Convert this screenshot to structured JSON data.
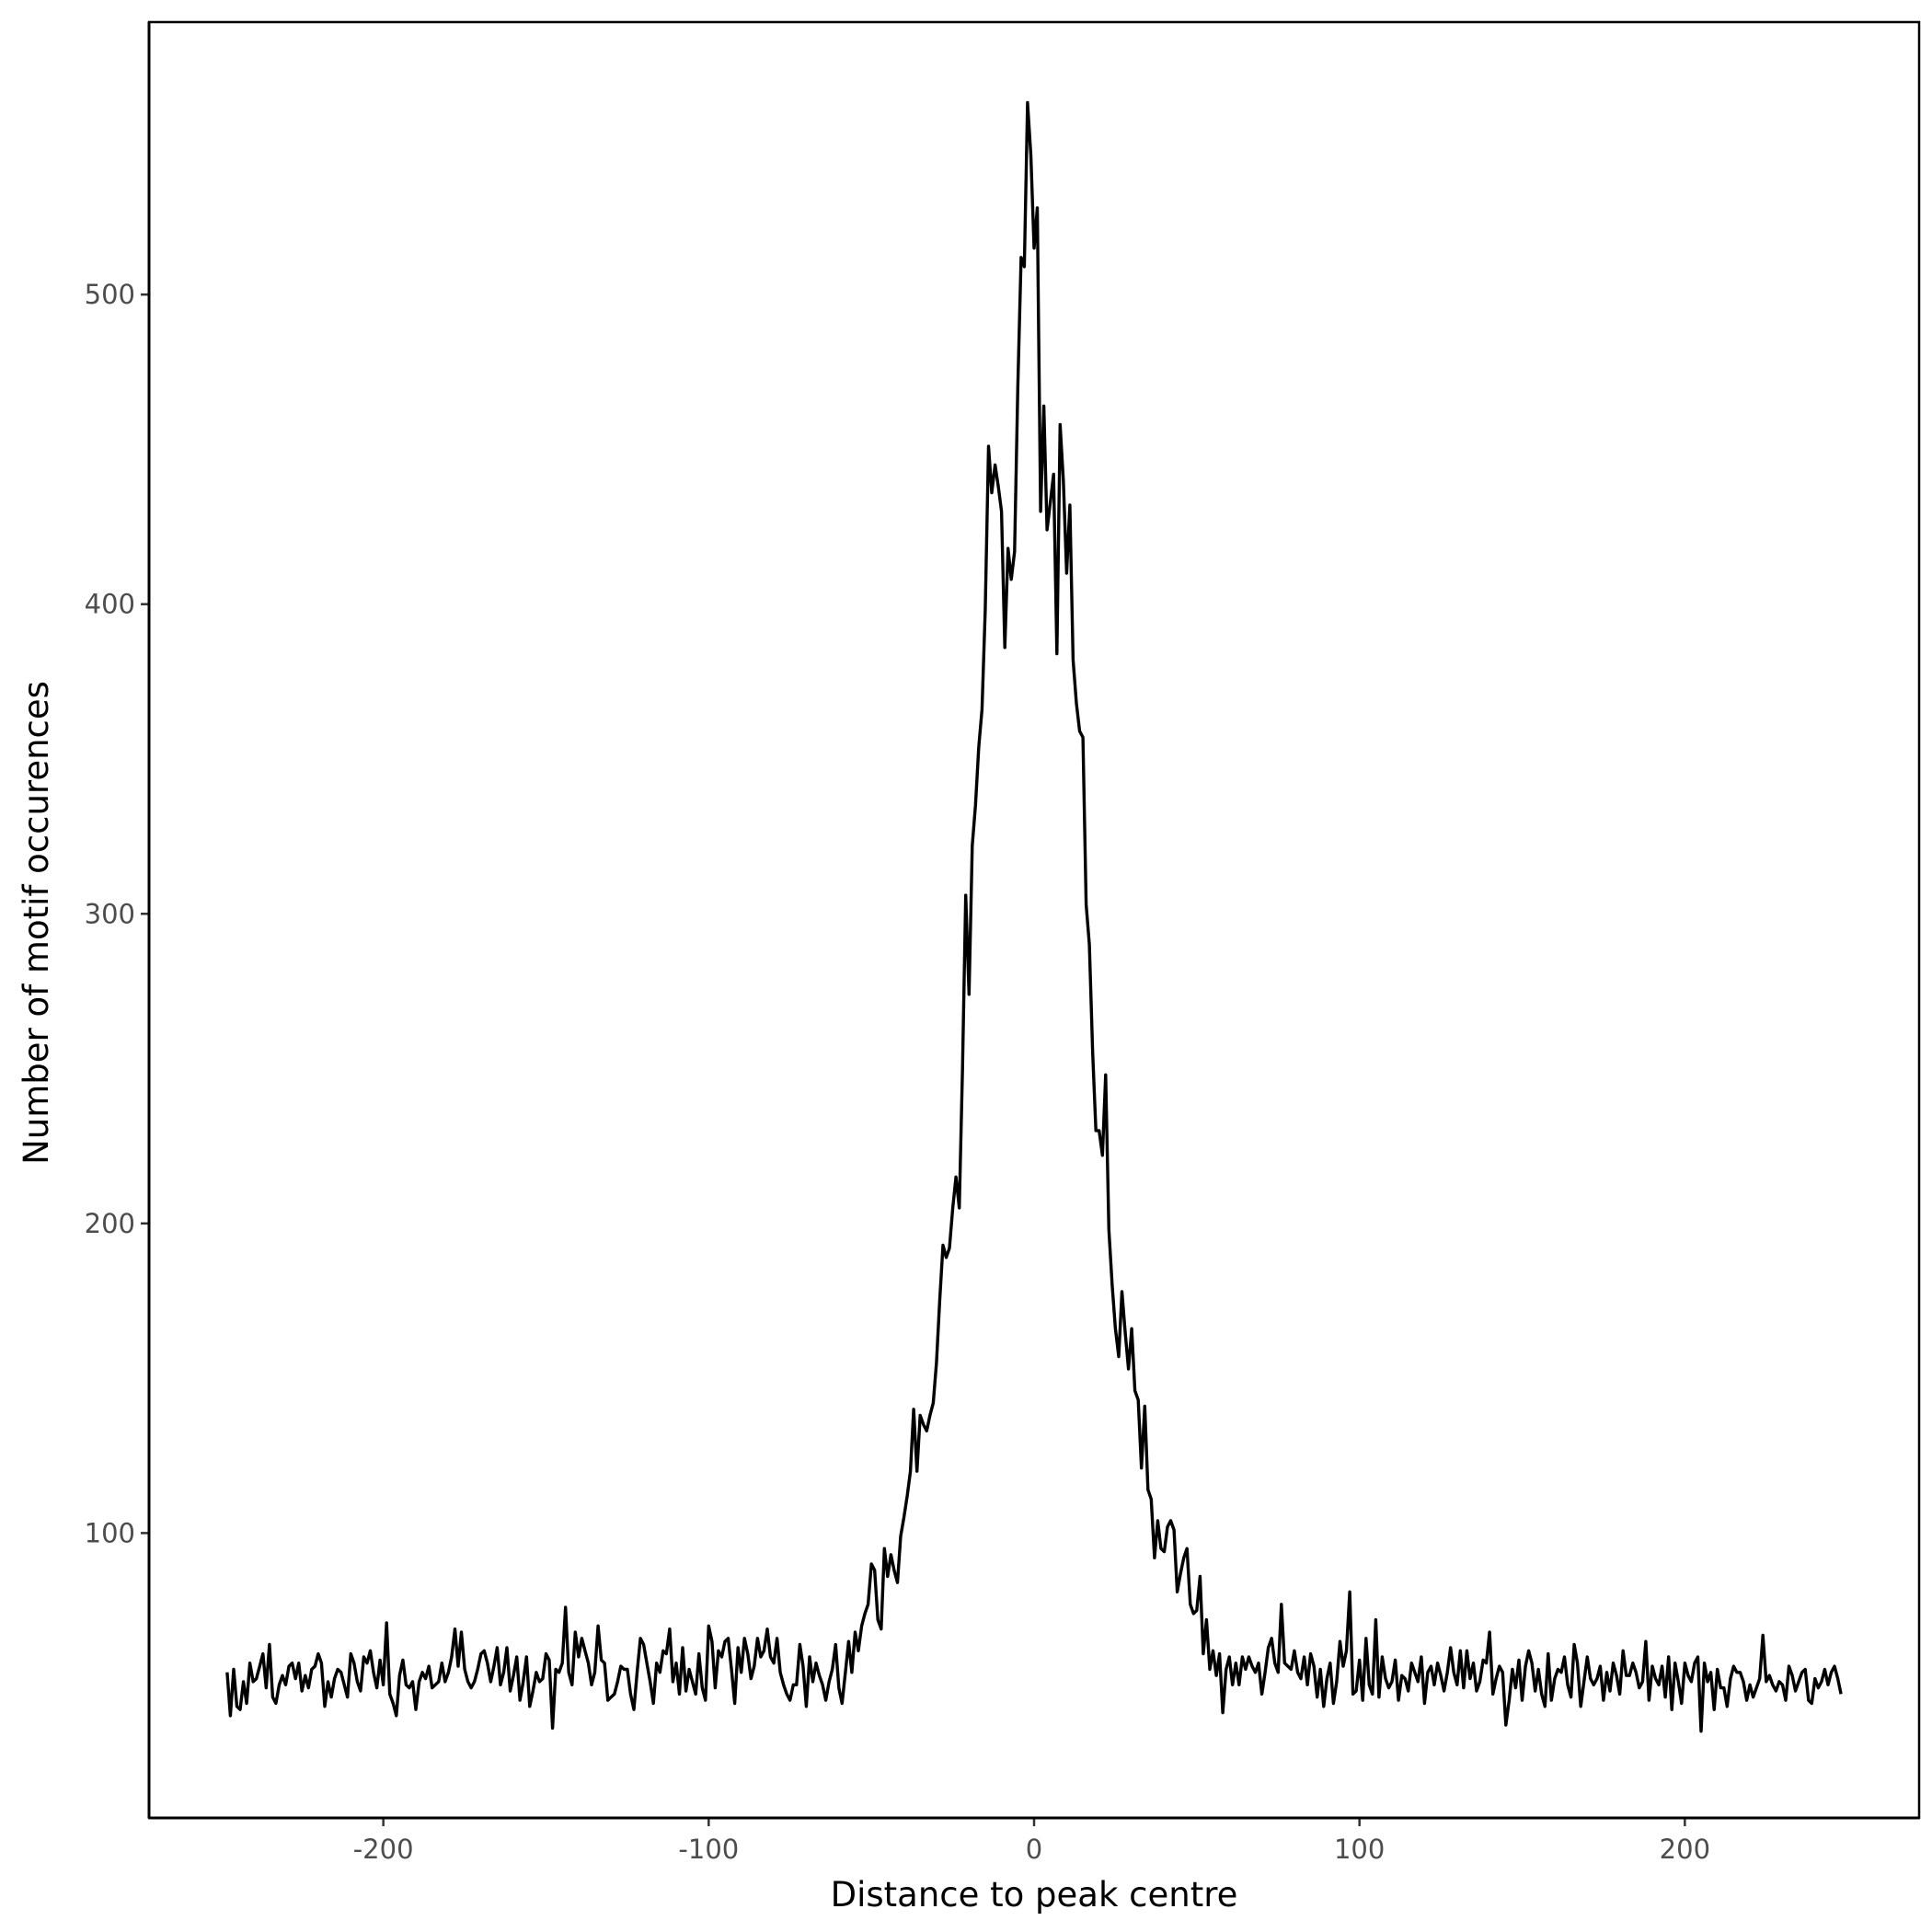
{
  "chart_data": {
    "type": "line",
    "title": "",
    "xlabel": "Distance to peak centre",
    "ylabel": "Number of motif occurences",
    "xlim": [
      -272,
      272
    ],
    "ylim": [
      8,
      588
    ],
    "x_ticks": [
      -200,
      -100,
      0,
      100,
      200
    ],
    "x_tick_labels": [
      "-200",
      "-100",
      "0",
      "100",
      "200"
    ],
    "y_ticks": [
      100,
      200,
      300,
      400,
      500
    ],
    "y_tick_labels": [
      "100",
      "200",
      "300",
      "400",
      "500"
    ],
    "grid": false,
    "line_color": "#000000",
    "x_start": -248,
    "x_step": 1,
    "y": [
      55,
      41,
      56,
      44,
      43,
      52,
      45,
      58,
      52,
      53,
      57,
      61,
      50,
      64,
      47,
      45,
      51,
      54,
      51,
      57,
      58,
      53,
      58,
      49,
      54,
      50,
      56,
      57,
      61,
      58,
      44,
      52,
      47,
      53,
      56,
      55,
      51,
      47,
      61,
      58,
      52,
      49,
      60,
      58,
      62,
      55,
      50,
      59,
      51,
      71,
      48,
      45,
      41,
      54,
      59,
      51,
      50,
      52,
      43,
      52,
      55,
      53,
      57,
      50,
      51,
      52,
      58,
      52,
      55,
      60,
      69,
      57,
      68,
      56,
      52,
      50,
      52,
      56,
      61,
      62,
      58,
      52,
      57,
      63,
      51,
      55,
      63,
      49,
      54,
      60,
      46,
      52,
      60,
      44,
      49,
      55,
      52,
      53,
      61,
      59,
      37,
      56,
      55,
      58,
      76,
      55,
      51,
      68,
      60,
      66,
      62,
      58,
      51,
      55,
      70,
      59,
      58,
      46,
      47,
      48,
      52,
      57,
      56,
      56,
      48,
      43,
      55,
      66,
      64,
      58,
      52,
      45,
      58,
      55,
      62,
      61,
      69,
      52,
      58,
      48,
      63,
      49,
      56,
      52,
      48,
      61,
      50,
      46,
      70,
      65,
      50,
      62,
      60,
      65,
      66,
      56,
      45,
      63,
      55,
      66,
      61,
      53,
      57,
      66,
      60,
      62,
      69,
      60,
      58,
      66,
      55,
      51,
      48,
      46,
      51,
      51,
      64,
      57,
      44,
      60,
      52,
      58,
      54,
      51,
      46,
      52,
      56,
      64,
      50,
      45,
      55,
      65,
      55,
      68,
      62,
      70,
      74,
      77,
      90,
      88,
      72,
      69,
      95,
      86,
      93,
      88,
      84,
      99,
      105,
      112,
      120,
      140,
      120,
      138,
      135,
      133,
      138,
      142,
      155,
      175,
      193,
      189,
      192,
      205,
      215,
      205,
      250,
      306,
      274,
      322,
      335,
      354,
      366,
      398,
      451,
      436,
      445,
      438,
      430,
      386,
      418,
      408,
      417,
      470,
      512,
      509,
      562,
      545,
      515,
      528,
      430,
      464,
      424,
      433,
      442,
      384,
      458,
      440,
      410,
      432,
      382,
      368,
      359,
      357,
      303,
      290,
      255,
      230,
      230,
      222,
      248,
      198,
      180,
      166,
      157,
      178,
      165,
      153,
      166,
      146,
      143,
      121,
      141,
      114,
      111,
      92,
      104,
      95,
      94,
      102,
      104,
      101,
      81,
      87,
      92,
      95,
      77,
      74,
      75,
      86,
      61,
      72,
      56,
      62,
      54,
      61,
      42,
      56,
      60,
      51,
      58,
      51,
      60,
      56,
      60,
      57,
      55,
      58,
      48,
      55,
      63,
      66,
      58,
      55,
      77,
      58,
      57,
      56,
      62,
      55,
      53,
      60,
      51,
      61,
      57,
      47,
      56,
      44,
      53,
      58,
      45,
      52,
      65,
      57,
      62,
      81,
      48,
      49,
      59,
      46,
      66,
      51,
      48,
      72,
      47,
      60,
      53,
      50,
      52,
      59,
      46,
      54,
      53,
      49,
      58,
      55,
      52,
      60,
      45,
      55,
      57,
      51,
      58,
      54,
      49,
      55,
      63,
      55,
      51,
      62,
      50,
      62,
      53,
      58,
      49,
      52,
      59,
      58,
      68,
      48,
      53,
      57,
      55,
      38,
      46,
      56,
      50,
      59,
      46,
      57,
      62,
      58,
      49,
      56,
      48,
      44,
      61,
      46,
      53,
      56,
      55,
      60,
      51,
      47,
      64,
      58,
      44,
      52,
      60,
      53,
      51,
      53,
      57,
      46,
      55,
      49,
      58,
      54,
      48,
      62,
      54,
      54,
      58,
      55,
      50,
      52,
      65,
      46,
      57,
      53,
      51,
      57,
      47,
      60,
      43,
      58,
      52,
      45,
      58,
      54,
      52,
      58,
      60,
      36,
      58,
      52,
      55,
      43,
      56,
      50,
      50,
      44,
      53,
      57,
      55,
      55,
      52,
      46,
      51,
      47,
      50,
      53,
      67,
      52,
      54,
      51,
      49,
      52,
      51,
      46,
      57,
      54,
      49,
      52,
      55,
      56,
      46,
      45,
      53,
      50,
      52,
      56,
      51,
      55,
      57,
      53,
      48
    ]
  }
}
